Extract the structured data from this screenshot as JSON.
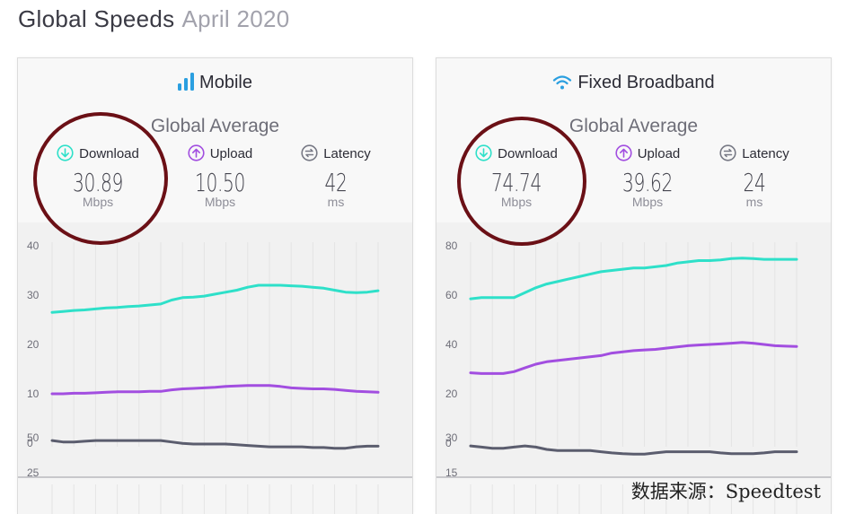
{
  "page": {
    "title": "Global Speeds",
    "subtitle": "April 2020"
  },
  "colors": {
    "download": "#2ee0c9",
    "upload": "#a24ee0",
    "latency": "#5b5d6e",
    "annotation": "#6b1016"
  },
  "panels": [
    {
      "title": "Mobile",
      "icon": "signal-bars-icon",
      "average_label": "Global Average",
      "metrics": [
        {
          "label": "Download",
          "value": "30.89",
          "unit": "Mbps",
          "icon": "download-arrow-icon"
        },
        {
          "label": "Upload",
          "value": "10.50",
          "unit": "Mbps",
          "icon": "upload-arrow-icon"
        },
        {
          "label": "Latency",
          "value": "42",
          "unit": "ms",
          "icon": "latency-icon"
        }
      ]
    },
    {
      "title": "Fixed Broadband",
      "icon": "wifi-icon",
      "average_label": "Global Average",
      "metrics": [
        {
          "label": "Download",
          "value": "74.74",
          "unit": "Mbps",
          "icon": "download-arrow-icon"
        },
        {
          "label": "Upload",
          "value": "39.62",
          "unit": "Mbps",
          "icon": "upload-arrow-icon"
        },
        {
          "label": "Latency",
          "value": "24",
          "unit": "ms",
          "icon": "latency-icon"
        }
      ]
    }
  ],
  "chart_data": [
    {
      "type": "line",
      "panel": "Mobile",
      "title": "",
      "xlabel": "",
      "ylabel": "",
      "ylim": [
        0,
        40
      ],
      "yticks": [
        0,
        10,
        20,
        30,
        40
      ],
      "grid": true,
      "x": [
        1,
        2,
        3,
        4,
        5,
        6,
        7,
        8,
        9,
        10,
        11,
        12,
        13,
        14,
        15,
        16,
        17,
        18,
        19,
        20,
        21,
        22,
        23,
        24,
        25,
        26,
        27,
        28,
        29,
        30,
        31
      ],
      "series": [
        {
          "key": "download",
          "values": [
            26.5,
            26.7,
            26.9,
            27.0,
            27.2,
            27.4,
            27.5,
            27.7,
            27.8,
            28.0,
            28.2,
            29.0,
            29.5,
            29.6,
            29.8,
            30.2,
            30.6,
            31.0,
            31.6,
            32.0,
            32.0,
            32.0,
            31.9,
            31.8,
            31.6,
            31.4,
            31.0,
            30.6,
            30.5,
            30.6,
            30.9
          ]
        },
        {
          "key": "upload",
          "values": [
            10.0,
            10.0,
            10.1,
            10.1,
            10.2,
            10.3,
            10.4,
            10.4,
            10.4,
            10.5,
            10.5,
            10.8,
            11.0,
            11.1,
            11.2,
            11.3,
            11.5,
            11.6,
            11.7,
            11.7,
            11.7,
            11.5,
            11.2,
            11.1,
            11.0,
            11.0,
            10.9,
            10.7,
            10.5,
            10.4,
            10.3
          ]
        }
      ]
    },
    {
      "type": "line",
      "panel": "Mobile",
      "title": "",
      "xlabel": "",
      "ylabel": "",
      "yticks": [
        25,
        50
      ],
      "grid": true,
      "x": [
        1,
        2,
        3,
        4,
        5,
        6,
        7,
        8,
        9,
        10,
        11,
        12,
        13,
        14,
        15,
        16,
        17,
        18,
        19,
        20,
        21,
        22,
        23,
        24,
        25,
        26,
        27,
        28,
        29,
        30,
        31
      ],
      "series": [
        {
          "key": "latency",
          "values": [
            48,
            47,
            47,
            47.5,
            48,
            48,
            48,
            48,
            48,
            48,
            48,
            47,
            46,
            45.5,
            45.5,
            45.5,
            45.5,
            45,
            44.5,
            44,
            43.5,
            43.5,
            43.5,
            43.5,
            43,
            43,
            42.5,
            42.5,
            43.5,
            44,
            44
          ]
        }
      ]
    },
    {
      "type": "line",
      "panel": "Fixed Broadband",
      "title": "",
      "xlabel": "",
      "ylabel": "",
      "ylim": [
        0,
        80
      ],
      "yticks": [
        0,
        20,
        40,
        60,
        80
      ],
      "grid": true,
      "x": [
        1,
        2,
        3,
        4,
        5,
        6,
        7,
        8,
        9,
        10,
        11,
        12,
        13,
        14,
        15,
        16,
        17,
        18,
        19,
        20,
        21,
        22,
        23,
        24,
        25,
        26,
        27,
        28,
        29,
        30,
        31
      ],
      "series": [
        {
          "key": "download",
          "values": [
            58.5,
            59,
            59,
            59,
            59,
            61,
            63,
            64.5,
            65.5,
            66.5,
            67.5,
            68.5,
            69.5,
            70,
            70.5,
            71,
            71,
            71.5,
            72,
            73,
            73.5,
            74,
            74,
            74.3,
            74.8,
            75,
            74.8,
            74.5,
            74.5,
            74.5,
            74.5
          ]
        },
        {
          "key": "upload",
          "values": [
            28.5,
            28.2,
            28.2,
            28.2,
            29,
            30.5,
            32,
            33,
            33.5,
            34,
            34.5,
            35,
            35.5,
            36.5,
            37,
            37.5,
            37.8,
            38,
            38.5,
            39,
            39.5,
            39.8,
            40,
            40.2,
            40.5,
            40.8,
            40.5,
            40,
            39.5,
            39.3,
            39.2
          ]
        }
      ]
    },
    {
      "type": "line",
      "panel": "Fixed Broadband",
      "title": "",
      "xlabel": "",
      "ylabel": "",
      "yticks": [
        15,
        30
      ],
      "grid": true,
      "x": [
        1,
        2,
        3,
        4,
        5,
        6,
        7,
        8,
        9,
        10,
        11,
        12,
        13,
        14,
        15,
        16,
        17,
        18,
        19,
        20,
        21,
        22,
        23,
        24,
        25,
        26,
        27,
        28,
        29,
        30,
        31
      ],
      "series": [
        {
          "key": "latency",
          "values": [
            26.5,
            26,
            25.5,
            25.5,
            26,
            26.5,
            26,
            25,
            24.5,
            24.5,
            24.5,
            24.5,
            24,
            23.5,
            23.2,
            23,
            23,
            23.5,
            24,
            24,
            24,
            24,
            24,
            23.5,
            23.2,
            23.2,
            23.2,
            23.5,
            24,
            24,
            24
          ]
        }
      ]
    }
  ],
  "watermark": "数据来源：Speedtest"
}
